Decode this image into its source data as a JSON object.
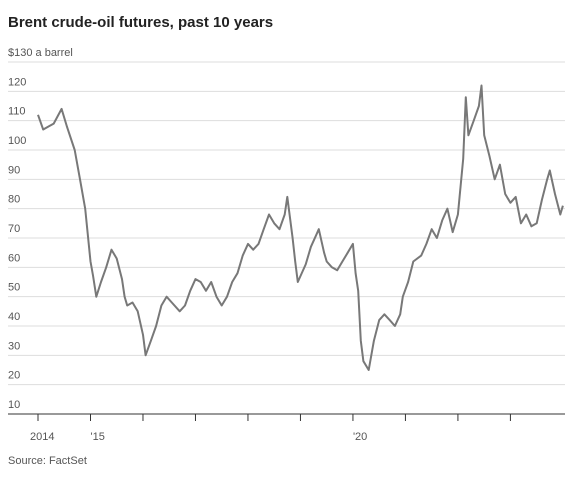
{
  "chart_data": {
    "type": "line",
    "title": "Brent crude-oil futures, past 10 years",
    "source": "Source: FactSet",
    "x": [
      2014.0,
      2014.1,
      2014.2,
      2014.3,
      2014.45,
      2014.55,
      2014.7,
      2014.8,
      2014.9,
      2015.0,
      2015.05,
      2015.11,
      2015.2,
      2015.3,
      2015.4,
      2015.5,
      2015.6,
      2015.65,
      2015.7,
      2015.8,
      2015.9,
      2016.0,
      2016.05,
      2016.15,
      2016.25,
      2016.35,
      2016.45,
      2016.55,
      2016.7,
      2016.8,
      2016.9,
      2017.0,
      2017.1,
      2017.2,
      2017.3,
      2017.4,
      2017.5,
      2017.6,
      2017.7,
      2017.8,
      2017.9,
      2018.0,
      2018.1,
      2018.2,
      2018.3,
      2018.4,
      2018.5,
      2018.6,
      2018.7,
      2018.75,
      2018.85,
      2018.9,
      2018.95,
      2019.1,
      2019.2,
      2019.3,
      2019.35,
      2019.45,
      2019.5,
      2019.6,
      2019.7,
      2019.8,
      2019.9,
      2020.0,
      2020.05,
      2020.1,
      2020.15,
      2020.2,
      2020.3,
      2020.4,
      2020.5,
      2020.6,
      2020.7,
      2020.8,
      2020.9,
      2020.95,
      2021.05,
      2021.15,
      2021.3,
      2021.4,
      2021.5,
      2021.6,
      2021.7,
      2021.8,
      2021.9,
      2021.95,
      2022.0,
      2022.1,
      2022.15,
      2022.2,
      2022.3,
      2022.4,
      2022.45,
      2022.5,
      2022.6,
      2022.7,
      2022.8,
      2022.9,
      2023.0,
      2023.1,
      2023.2,
      2023.3,
      2023.4,
      2023.5,
      2023.6,
      2023.7,
      2023.75,
      2023.85,
      2023.95,
      2024.0
    ],
    "series": [
      {
        "name": "Brent",
        "color": "#787878",
        "values": [
          112,
          107,
          108,
          109,
          114,
          108,
          100,
          90,
          80,
          62,
          57,
          50,
          55,
          60,
          66,
          63,
          56,
          50,
          47,
          48,
          45,
          37,
          30,
          35,
          40,
          47,
          50,
          48,
          45,
          47,
          52,
          56,
          55,
          52,
          55,
          50,
          47,
          50,
          55,
          58,
          64,
          68,
          66,
          68,
          73,
          78,
          75,
          73,
          78,
          84,
          70,
          62,
          55,
          61,
          67,
          71,
          73,
          65,
          62,
          60,
          59,
          62,
          65,
          68,
          58,
          52,
          35,
          28,
          25,
          35,
          42,
          44,
          42,
          40,
          44,
          50,
          55,
          62,
          64,
          68,
          73,
          70,
          76,
          80,
          72,
          75,
          78,
          97,
          118,
          105,
          110,
          115,
          122,
          105,
          98,
          90,
          95,
          85,
          82,
          84,
          75,
          78,
          74,
          75,
          83,
          90,
          93,
          85,
          78,
          81
        ]
      }
    ],
    "xlim": [
      2014,
      2024.04
    ],
    "xticks": [
      {
        "value": 2014,
        "label": "2014"
      },
      {
        "value": 2015,
        "label": "'15"
      },
      {
        "value": 2016,
        "label": null
      },
      {
        "value": 2017,
        "label": null
      },
      {
        "value": 2018,
        "label": null
      },
      {
        "value": 2019,
        "label": null
      },
      {
        "value": 2020,
        "label": "'20"
      },
      {
        "value": 2021,
        "label": null
      },
      {
        "value": 2022,
        "label": null
      },
      {
        "value": 2023,
        "label": null
      }
    ],
    "ylim": [
      10,
      130
    ],
    "yticks": [
      10,
      20,
      30,
      40,
      50,
      60,
      70,
      80,
      90,
      100,
      110,
      120,
      {
        "value": 130,
        "label": "$130 a barrel"
      }
    ],
    "grid": true
  }
}
